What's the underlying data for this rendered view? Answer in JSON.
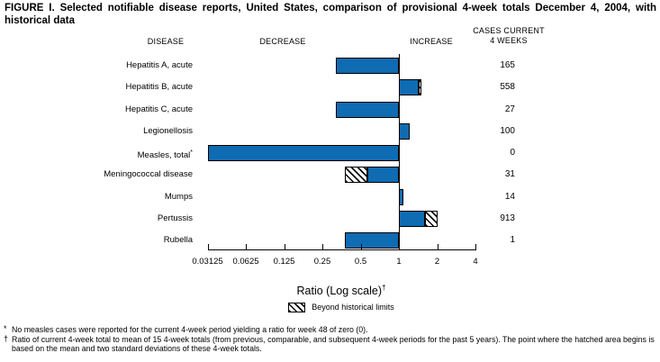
{
  "figure": {
    "title": "FIGURE I. Selected notifiable disease reports, United States, comparison of provisional 4-week totals December 4, 2004, with historical data"
  },
  "headers": {
    "disease": "DISEASE",
    "decrease": "DECREASE",
    "increase": "INCREASE",
    "cases_line1": "CASES CURRENT",
    "cases_line2": "4 WEEKS"
  },
  "chart_data": {
    "type": "bar",
    "scale": "log2",
    "orientation": "horizontal",
    "baseline": 1,
    "xlim": [
      0.03125,
      4
    ],
    "x_ticks": [
      "0.03125",
      "0.0625",
      "0.125",
      "0.25",
      "0.5",
      "1",
      "2",
      "4"
    ],
    "xlabel": "Ratio (Log scale)",
    "xlabel_sup": "†",
    "bar_color": "#0f6bb2",
    "legend": {
      "swatch": "hatched",
      "label": "Beyond historical limits"
    },
    "rows": [
      {
        "disease": "Hepatitis A, acute",
        "sup": "",
        "ratio": 0.32,
        "hatch_from": null,
        "cases": "165"
      },
      {
        "disease": "Hepatitis B, acute",
        "sup": "",
        "ratio": 1.5,
        "hatch_from": 1.43,
        "cases": "558"
      },
      {
        "disease": "Hepatitis C, acute",
        "sup": "",
        "ratio": 0.32,
        "hatch_from": null,
        "cases": "27"
      },
      {
        "disease": "Legionellosis",
        "sup": "",
        "ratio": 1.22,
        "hatch_from": null,
        "cases": "100"
      },
      {
        "disease": "Measles, total",
        "sup": "*",
        "ratio": 0.03125,
        "hatch_from": null,
        "cases": "0"
      },
      {
        "disease": "Meningococcal disease",
        "sup": "",
        "ratio": 0.375,
        "hatch_from": 0.565,
        "cases": "31"
      },
      {
        "disease": "Mumps",
        "sup": "",
        "ratio": 1.08,
        "hatch_from": null,
        "cases": "14"
      },
      {
        "disease": "Pertussis",
        "sup": "",
        "ratio": 2.02,
        "hatch_from": 1.6,
        "cases": "913"
      },
      {
        "disease": "Rubella",
        "sup": "",
        "ratio": 0.375,
        "hatch_from": null,
        "cases": "1"
      }
    ]
  },
  "footnotes": [
    {
      "symbol": "*",
      "text": "No measles cases were reported for the current 4-week period yielding a ratio for week 48 of zero (0)."
    },
    {
      "symbol": "†",
      "text": "Ratio of current 4-week total to mean of 15 4-week totals (from previous, comparable, and subsequent 4-week periods for the past 5 years). The point where the hatched area begins is based on the mean and two standard deviations of these 4-week totals."
    }
  ]
}
